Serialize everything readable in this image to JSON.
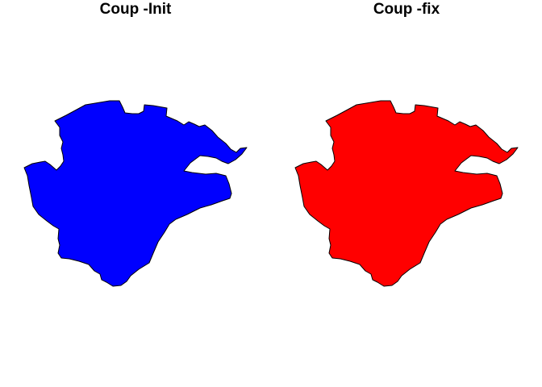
{
  "panels": [
    {
      "title": "Coup -Init",
      "fill_color": "#0000FF",
      "stroke_color": "#000000"
    },
    {
      "title": "Coup -fix",
      "fill_color": "#FF0000",
      "stroke_color": "#000000"
    }
  ]
}
